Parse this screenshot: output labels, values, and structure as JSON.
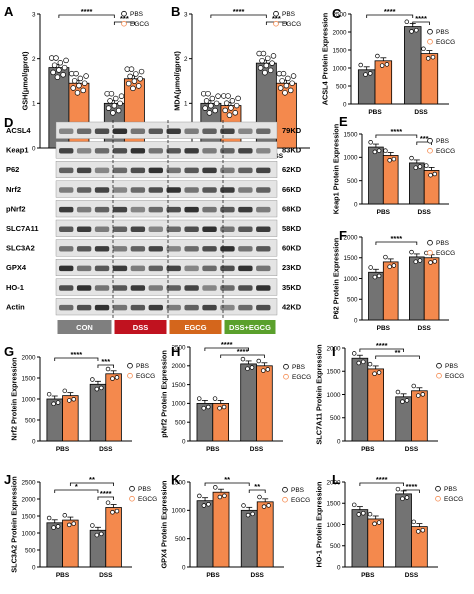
{
  "colors": {
    "pbs": "#737373",
    "egcg": "#f4894d",
    "bar_edge": "#000000"
  },
  "western_blot": {
    "panel_letter": "D",
    "bands": [
      {
        "name": "ACSL4",
        "kd": "79KD"
      },
      {
        "name": "Keap1",
        "kd": "83KD"
      },
      {
        "name": "P62",
        "kd": "62KD"
      },
      {
        "name": "Nrf2",
        "kd": "66KD"
      },
      {
        "name": "pNrf2",
        "kd": "68KD"
      },
      {
        "name": "SLC7A11",
        "kd": "58KD"
      },
      {
        "name": "SLC3A2",
        "kd": "60KD"
      },
      {
        "name": "GPX4",
        "kd": "23KD"
      },
      {
        "name": "HO-1",
        "kd": "35KD"
      },
      {
        "name": "Actin",
        "kd": "42KD"
      }
    ],
    "groups": [
      {
        "label": "CON",
        "color": "#7f7f7f"
      },
      {
        "label": "DSS",
        "color": "#c0121f"
      },
      {
        "label": "EGCG",
        "color": "#d4661c"
      },
      {
        "label": "DSS+EGCG",
        "color": "#5aa02c"
      }
    ]
  },
  "chart_data": [
    {
      "panel": "A",
      "type": "bar",
      "categories": [
        "PBS",
        "DSS"
      ],
      "ylabel": "GSH(μmol/gprot)",
      "ylim": [
        0,
        3
      ],
      "yticks": [
        0,
        1,
        2,
        3
      ],
      "legend": [
        "PBS",
        "EGCG"
      ],
      "series": [
        {
          "name": "PBS",
          "values": [
            1.8,
            1.0
          ]
        },
        {
          "name": "EGCG",
          "values": [
            1.45,
            1.55
          ]
        }
      ],
      "significance": [
        {
          "label": "****",
          "groups": [
            "PBS.PBS",
            "DSS.PBS"
          ]
        },
        {
          "label": "***",
          "groups": [
            "DSS.PBS",
            "DSS.EGCG"
          ]
        }
      ]
    },
    {
      "panel": "B",
      "type": "bar",
      "categories": [
        "PBS",
        "DSS"
      ],
      "ylabel": "MDA(μmol/gprot)",
      "ylim": [
        0,
        3
      ],
      "yticks": [
        0,
        1,
        2,
        3
      ],
      "legend": [
        "PBS",
        "EGCG"
      ],
      "series": [
        {
          "name": "PBS",
          "values": [
            1.0,
            1.9
          ]
        },
        {
          "name": "EGCG",
          "values": [
            0.95,
            1.45
          ]
        }
      ],
      "significance": [
        {
          "label": "****",
          "groups": [
            "PBS.PBS",
            "DSS.PBS"
          ]
        },
        {
          "label": "***",
          "groups": [
            "DSS.PBS",
            "DSS.EGCG"
          ]
        }
      ]
    },
    {
      "panel": "C",
      "type": "bar",
      "categories": [
        "PBS",
        "DSS"
      ],
      "ylabel": "ACSL4 Protein Expression",
      "ylim": [
        0,
        2500
      ],
      "yticks": [
        0,
        500,
        1000,
        1500,
        2000,
        2500
      ],
      "legend": [
        "PBS",
        "EGCG"
      ],
      "series": [
        {
          "name": "PBS",
          "values": [
            950,
            2150
          ]
        },
        {
          "name": "EGCG",
          "values": [
            1200,
            1400
          ]
        }
      ],
      "significance": [
        {
          "label": "****",
          "groups": [
            "PBS.PBS",
            "DSS.PBS"
          ]
        },
        {
          "label": "****",
          "groups": [
            "DSS.PBS",
            "DSS.EGCG"
          ]
        }
      ]
    },
    {
      "panel": "E",
      "type": "bar",
      "categories": [
        "PBS",
        "DSS"
      ],
      "ylabel": "Keap1 Protein Expression",
      "ylim": [
        0,
        1500
      ],
      "yticks": [
        0,
        500,
        1000,
        1500
      ],
      "legend": [
        "PBS",
        "EGCG"
      ],
      "series": [
        {
          "name": "PBS",
          "values": [
            1220,
            880
          ]
        },
        {
          "name": "EGCG",
          "values": [
            1040,
            720
          ]
        }
      ],
      "significance": [
        {
          "label": "****",
          "groups": [
            "PBS.PBS",
            "DSS.PBS"
          ]
        },
        {
          "label": "***",
          "groups": [
            "DSS.PBS",
            "DSS.EGCG"
          ]
        }
      ]
    },
    {
      "panel": "F",
      "type": "bar",
      "categories": [
        "PBS",
        "DSS"
      ],
      "ylabel": "P62 Protein Expression",
      "ylim": [
        0,
        2000
      ],
      "yticks": [
        0,
        500,
        1000,
        1500,
        2000
      ],
      "legend": [
        "PBS",
        "EGCG"
      ],
      "series": [
        {
          "name": "PBS",
          "values": [
            1150,
            1520
          ]
        },
        {
          "name": "EGCG",
          "values": [
            1400,
            1500
          ]
        }
      ],
      "significance": [
        {
          "label": "****",
          "groups": [
            "PBS.PBS",
            "DSS.PBS"
          ]
        }
      ]
    },
    {
      "panel": "G",
      "type": "bar",
      "categories": [
        "PBS",
        "DSS"
      ],
      "ylabel": "Nrf2 Protein Expression",
      "ylim": [
        0,
        2000
      ],
      "yticks": [
        0,
        500,
        1000,
        1500,
        2000
      ],
      "legend": [
        "PBS",
        "EGCG"
      ],
      "series": [
        {
          "name": "PBS",
          "values": [
            1000,
            1350
          ]
        },
        {
          "name": "EGCG",
          "values": [
            1080,
            1600
          ]
        }
      ],
      "significance": [
        {
          "label": "****",
          "groups": [
            "PBS.PBS",
            "DSS.PBS"
          ]
        },
        {
          "label": "***",
          "groups": [
            "DSS.PBS",
            "DSS.EGCG"
          ]
        }
      ]
    },
    {
      "panel": "H",
      "type": "bar",
      "categories": [
        "PBS",
        "DSS"
      ],
      "ylabel": "pNrf2 Protein Expression",
      "ylim": [
        0,
        2500
      ],
      "yticks": [
        0,
        500,
        1000,
        1500,
        2000,
        2500
      ],
      "legend": [
        "PBS",
        "EGCG"
      ],
      "series": [
        {
          "name": "PBS",
          "values": [
            1000,
            2050
          ]
        },
        {
          "name": "EGCG",
          "values": [
            1000,
            2000
          ]
        }
      ],
      "significance": [
        {
          "label": "****",
          "groups": [
            "PBS.PBS",
            "DSS.PBS"
          ]
        },
        {
          "label": "****",
          "groups": [
            "PBS.EGCG",
            "DSS.EGCG"
          ]
        }
      ]
    },
    {
      "panel": "I",
      "type": "bar",
      "categories": [
        "PBS",
        "DSS"
      ],
      "ylabel": "SLC7A11 Protein Expression",
      "ylim": [
        0,
        2000
      ],
      "yticks": [
        0,
        500,
        1000,
        1500,
        2000
      ],
      "legend": [
        "PBS",
        "EGCG"
      ],
      "series": [
        {
          "name": "PBS",
          "values": [
            1780,
            950
          ]
        },
        {
          "name": "EGCG",
          "values": [
            1550,
            1080
          ]
        }
      ],
      "significance": [
        {
          "label": "****",
          "groups": [
            "PBS.PBS",
            "DSS.PBS"
          ]
        },
        {
          "label": "**",
          "groups": [
            "PBS.EGCG",
            "DSS.EGCG"
          ]
        }
      ]
    },
    {
      "panel": "J",
      "type": "bar",
      "categories": [
        "PBS",
        "DSS"
      ],
      "ylabel": "SLC3A2 Protein Expression",
      "ylim": [
        0,
        2500
      ],
      "yticks": [
        0,
        500,
        1000,
        1500,
        2000,
        2500
      ],
      "legend": [
        "PBS",
        "EGCG"
      ],
      "series": [
        {
          "name": "PBS",
          "values": [
            1300,
            1080
          ]
        },
        {
          "name": "EGCG",
          "values": [
            1380,
            1750
          ]
        }
      ],
      "significance": [
        {
          "label": "**",
          "groups": [
            "PBS.EGCG",
            "DSS.EGCG"
          ]
        },
        {
          "label": "*",
          "groups": [
            "PBS.PBS",
            "DSS.PBS"
          ]
        },
        {
          "label": "****",
          "groups": [
            "DSS.PBS",
            "DSS.EGCG"
          ]
        }
      ]
    },
    {
      "panel": "K",
      "type": "bar",
      "categories": [
        "PBS",
        "DSS"
      ],
      "ylabel": "GPX4 Protein Expression",
      "ylim": [
        0,
        1500
      ],
      "yticks": [
        0,
        500,
        1000,
        1500
      ],
      "legend": [
        "PBS",
        "EGCG"
      ],
      "series": [
        {
          "name": "PBS",
          "values": [
            1170,
            1000
          ]
        },
        {
          "name": "EGCG",
          "values": [
            1320,
            1150
          ]
        }
      ],
      "significance": [
        {
          "label": "**",
          "groups": [
            "PBS.PBS",
            "DSS.PBS"
          ]
        },
        {
          "label": "**",
          "groups": [
            "DSS.PBS",
            "DSS.EGCG"
          ]
        }
      ]
    },
    {
      "panel": "L",
      "type": "bar",
      "categories": [
        "PBS",
        "DSS"
      ],
      "ylabel": "HO-1 Protein Expression",
      "ylim": [
        0,
        2000
      ],
      "yticks": [
        0,
        500,
        1000,
        1500,
        2000
      ],
      "legend": [
        "PBS",
        "EGCG"
      ],
      "series": [
        {
          "name": "PBS",
          "values": [
            1350,
            1720
          ]
        },
        {
          "name": "EGCG",
          "values": [
            1130,
            950
          ]
        }
      ],
      "significance": [
        {
          "label": "****",
          "groups": [
            "PBS.PBS",
            "DSS.PBS"
          ]
        },
        {
          "label": "****",
          "groups": [
            "DSS.PBS",
            "DSS.EGCG"
          ]
        }
      ]
    }
  ]
}
